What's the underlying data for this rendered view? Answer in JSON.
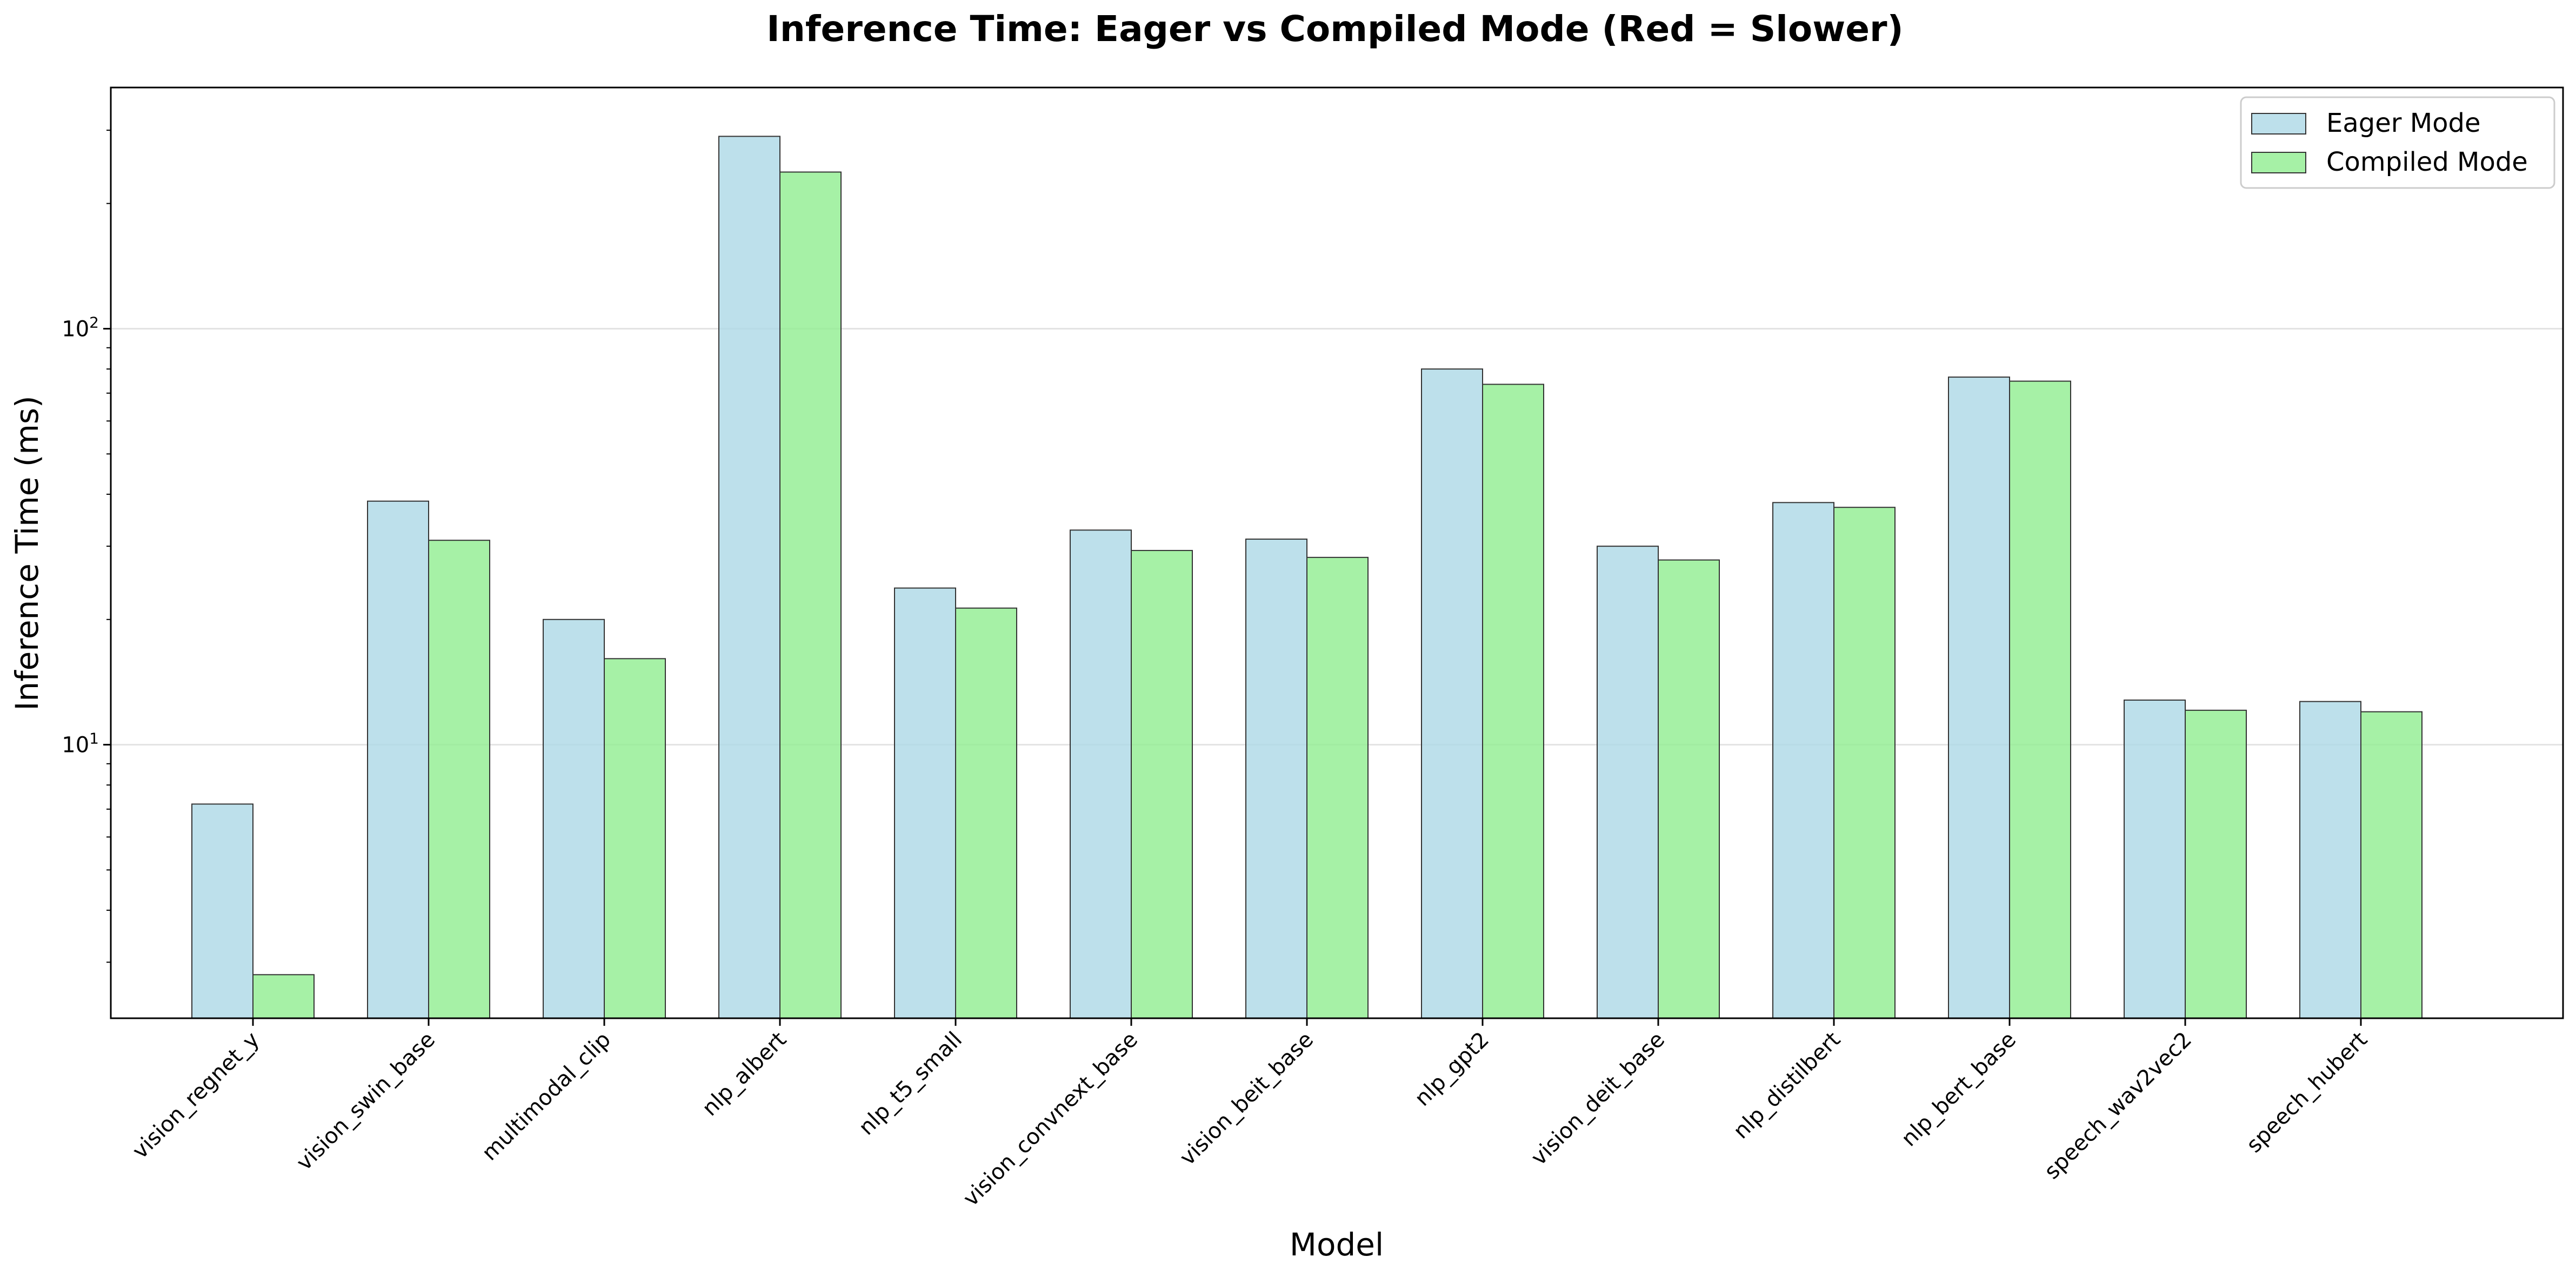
{
  "chart_data": {
    "type": "bar",
    "title": "Inference Time: Eager vs Compiled Mode (Red = Slower)",
    "xlabel": "Model",
    "ylabel": "Inference Time (ms)",
    "yscale": "log",
    "ylim": [
      2.2,
      380
    ],
    "yticks": [
      {
        "value": 10,
        "base": "10",
        "exp": "1"
      },
      {
        "value": 100,
        "base": "10",
        "exp": "2"
      }
    ],
    "grid": true,
    "legend_position": "top-right",
    "categories": [
      "vision_regnet_y",
      "vision_swin_base",
      "multimodal_clip",
      "nlp_albert",
      "nlp_t5_small",
      "vision_convnext_base",
      "vision_beit_base",
      "nlp_gpt2",
      "vision_deit_base",
      "nlp_distilbert",
      "nlp_bert_base",
      "speech_wav2vec2",
      "speech_hubert"
    ],
    "series": [
      {
        "name": "Eager Mode",
        "color": "#add8e6",
        "values": [
          7.2,
          38.5,
          20.0,
          290.0,
          23.8,
          32.8,
          31.2,
          80.0,
          30.0,
          38.2,
          76.5,
          12.8,
          12.7
        ]
      },
      {
        "name": "Compiled Mode",
        "color": "#90ee90",
        "values": [
          2.8,
          31.0,
          16.1,
          238.0,
          21.3,
          29.3,
          28.2,
          73.5,
          27.8,
          37.2,
          74.8,
          12.1,
          12.0
        ]
      }
    ]
  }
}
